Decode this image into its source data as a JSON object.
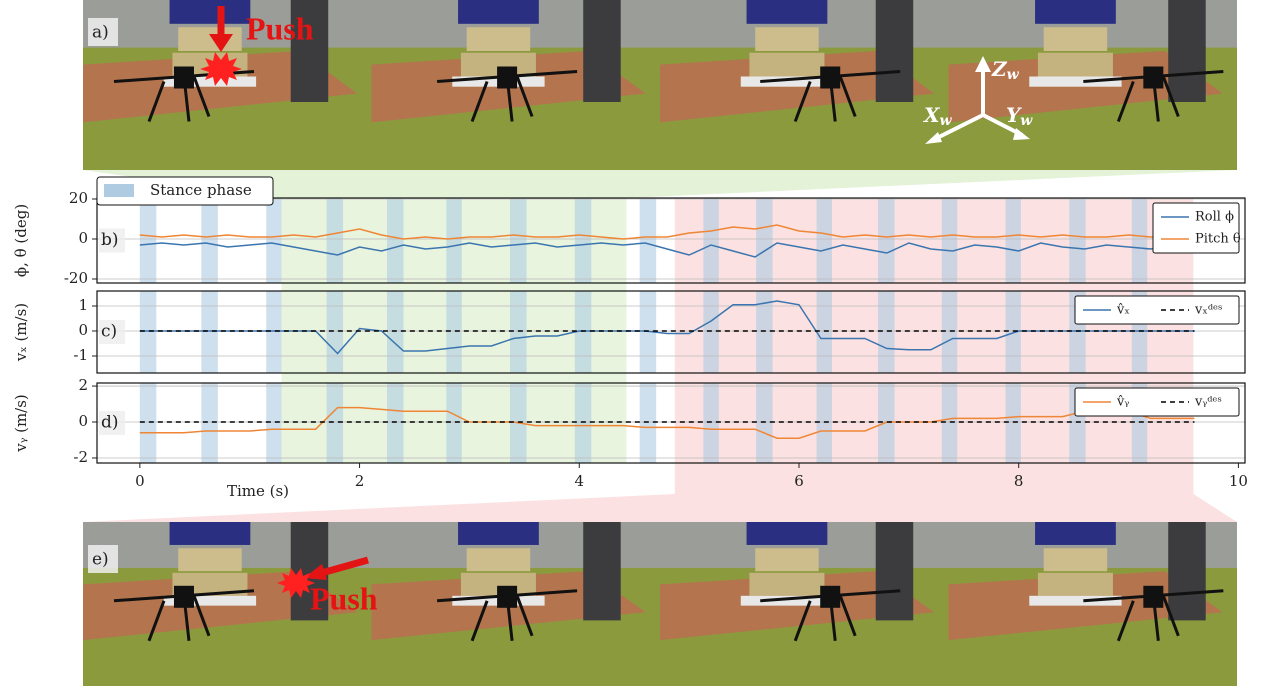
{
  "photos": {
    "top": {
      "label": "a)",
      "push": "Push",
      "axes": {
        "z": {
          "letter": "Z",
          "sub": "w"
        },
        "x": {
          "letter": "X",
          "sub": "w"
        },
        "y": {
          "letter": "Y",
          "sub": "w"
        }
      }
    },
    "bottom": {
      "label": "e)",
      "push": "Push"
    }
  },
  "phases": {
    "label": "Stance phase",
    "color": "#aecbe2",
    "stance": [
      [
        0,
        0.15
      ],
      [
        0.56,
        0.71
      ],
      [
        1.15,
        1.29
      ],
      [
        1.7,
        1.85
      ],
      [
        2.25,
        2.4
      ],
      [
        2.79,
        2.93
      ],
      [
        3.37,
        3.52
      ],
      [
        3.96,
        4.11
      ],
      [
        4.55,
        4.7
      ],
      [
        5.13,
        5.27
      ],
      [
        5.61,
        5.76
      ],
      [
        6.16,
        6.3
      ],
      [
        6.72,
        6.87
      ],
      [
        7.3,
        7.44
      ],
      [
        7.88,
        8.02
      ],
      [
        8.46,
        8.61
      ],
      [
        9.03,
        9.17
      ]
    ],
    "green_span": [
      1.29,
      4.43
    ],
    "green_color": "#d9ecc8",
    "red_span": [
      4.87,
      9.59
    ],
    "red_color": "#fadada"
  },
  "chart_data": [
    {
      "type": "line",
      "panel_label": "b)",
      "ylabel": "ϕ, θ (deg)",
      "xlim": [
        -0.39,
        10.06
      ],
      "ylim": [
        -22,
        20.5
      ],
      "yticks": [
        -20,
        0,
        20
      ],
      "grid": true,
      "legend": "upper right",
      "legend_ncol": 1,
      "x": [
        0,
        0.2,
        0.4,
        0.6,
        0.8,
        1,
        1.2,
        1.4,
        1.6,
        1.8,
        2,
        2.2,
        2.4,
        2.6,
        2.8,
        3,
        3.2,
        3.4,
        3.6,
        3.8,
        4,
        4.2,
        4.4,
        4.6,
        4.8,
        5,
        5.2,
        5.4,
        5.6,
        5.8,
        6,
        6.2,
        6.4,
        6.6,
        6.8,
        7,
        7.2,
        7.4,
        7.6,
        7.8,
        8,
        8.2,
        8.4,
        8.6,
        8.8,
        9,
        9.2,
        9.4,
        9.6
      ],
      "series": [
        {
          "name": "Roll ϕ",
          "color": "#3b75af",
          "values": [
            -3,
            -2,
            -3,
            -2,
            -4,
            -3,
            -2,
            -4,
            -6,
            -8,
            -4,
            -6,
            -3,
            -5,
            -4,
            -2,
            -4,
            -3,
            -2,
            -4,
            -3,
            -2,
            -3,
            -2,
            -5,
            -8,
            -3,
            -6,
            -9,
            -2,
            -4,
            -6,
            -3,
            -5,
            -7,
            -2,
            -5,
            -6,
            -3,
            -4,
            -6,
            -2,
            -4,
            -5,
            -3,
            -4,
            -5,
            -3,
            -4
          ]
        },
        {
          "name": "Pitch θ",
          "color": "#ef8636",
          "values": [
            2,
            1,
            2,
            1,
            2,
            1,
            1,
            2,
            1,
            3,
            5,
            2,
            0,
            1,
            0,
            1,
            1,
            2,
            1,
            1,
            2,
            1,
            0,
            1,
            1,
            3,
            4,
            6,
            5,
            7,
            4,
            3,
            1,
            2,
            1,
            2,
            1,
            2,
            1,
            1,
            2,
            1,
            2,
            1,
            1,
            2,
            1,
            1,
            2
          ]
        }
      ]
    },
    {
      "type": "line",
      "panel_label": "c)",
      "ylabel": "vₓ (m/s)",
      "xlim": [
        -0.39,
        10.06
      ],
      "ylim": [
        -1.68,
        1.6
      ],
      "yticks": [
        -1,
        0,
        1
      ],
      "grid": true,
      "legend": "upper right",
      "legend_ncol": 2,
      "x": [
        0,
        0.2,
        0.4,
        0.6,
        0.8,
        1,
        1.2,
        1.4,
        1.6,
        1.8,
        2,
        2.2,
        2.4,
        2.6,
        2.8,
        3,
        3.2,
        3.4,
        3.6,
        3.8,
        4,
        4.2,
        4.4,
        4.6,
        4.8,
        5,
        5.2,
        5.4,
        5.6,
        5.8,
        6,
        6.2,
        6.4,
        6.6,
        6.8,
        7,
        7.2,
        7.4,
        7.6,
        7.8,
        8,
        8.2,
        8.4,
        8.6,
        8.8,
        9,
        9.2,
        9.4,
        9.6
      ],
      "series": [
        {
          "name": "v̂ₓ",
          "color": "#3b75af",
          "values": [
            0,
            0,
            0,
            0,
            0,
            0,
            0,
            0,
            0,
            -0.9,
            0.1,
            0,
            -0.8,
            -0.8,
            -0.7,
            -0.6,
            -0.6,
            -0.3,
            -0.2,
            -0.2,
            0,
            0,
            0,
            0,
            -0.1,
            -0.1,
            0.4,
            1.05,
            1.05,
            1.2,
            1.05,
            -0.3,
            -0.3,
            -0.3,
            -0.7,
            -0.75,
            -0.75,
            -0.3,
            -0.3,
            -0.3,
            0,
            0,
            0,
            0,
            0,
            0,
            0,
            0,
            0
          ]
        },
        {
          "name": "vₓᵈᵉˢ",
          "color": "#000000",
          "dash": true,
          "x": [
            0,
            9.6
          ],
          "values": [
            0,
            0
          ]
        }
      ]
    },
    {
      "type": "line",
      "panel_label": "d)",
      "ylabel": "vᵧ (m/s)",
      "xlabel": "Time (s)",
      "xlim": [
        -0.39,
        10.06
      ],
      "xticks": [
        0,
        2,
        4,
        6,
        8,
        10
      ],
      "ylim": [
        -2.28,
        2.17
      ],
      "yticks": [
        -2,
        0,
        2
      ],
      "grid": true,
      "legend": "upper right",
      "legend_ncol": 2,
      "x": [
        0,
        0.2,
        0.4,
        0.6,
        0.8,
        1,
        1.2,
        1.4,
        1.6,
        1.8,
        2,
        2.2,
        2.4,
        2.6,
        2.8,
        3,
        3.2,
        3.4,
        3.6,
        3.8,
        4,
        4.2,
        4.4,
        4.6,
        4.8,
        5,
        5.2,
        5.4,
        5.6,
        5.8,
        6,
        6.2,
        6.4,
        6.6,
        6.8,
        7,
        7.2,
        7.4,
        7.6,
        7.8,
        8,
        8.2,
        8.4,
        8.6,
        8.8,
        9,
        9.2,
        9.4,
        9.6
      ],
      "series": [
        {
          "name": "v̂ᵧ",
          "color": "#ef8636",
          "values": [
            -0.6,
            -0.6,
            -0.6,
            -0.5,
            -0.5,
            -0.5,
            -0.4,
            -0.4,
            -0.4,
            0.8,
            0.8,
            0.7,
            0.6,
            0.6,
            0.6,
            0,
            0,
            0,
            -0.2,
            -0.2,
            -0.2,
            -0.2,
            -0.2,
            -0.3,
            -0.3,
            -0.3,
            -0.4,
            -0.4,
            -0.4,
            -0.9,
            -0.9,
            -0.5,
            -0.5,
            -0.5,
            0,
            0,
            0,
            0.2,
            0.2,
            0.2,
            0.3,
            0.3,
            0.3,
            0.6,
            0.6,
            0.6,
            0.2,
            0.2,
            0.2
          ]
        },
        {
          "name": "vᵧᵈᵉˢ",
          "color": "#000000",
          "dash": true,
          "x": [
            0,
            9.6
          ],
          "values": [
            0,
            0
          ]
        }
      ]
    }
  ]
}
